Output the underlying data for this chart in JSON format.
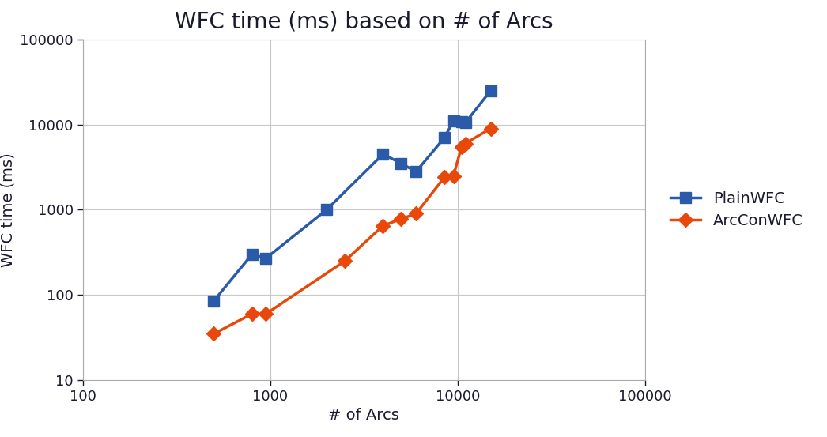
{
  "title": "WFC time (ms) based on # of Arcs",
  "xlabel": "# of Arcs",
  "ylabel": "WFC time (ms)",
  "plain_wfc": {
    "label": "PlainWFC",
    "color": "#2B5BA8",
    "marker": "s",
    "x": [
      500,
      800,
      950,
      2000,
      4000,
      5000,
      6000,
      8500,
      9500,
      10500,
      11000,
      15000
    ],
    "y": [
      85,
      300,
      270,
      1000,
      4500,
      3500,
      2800,
      7000,
      11000,
      10800,
      10500,
      25000
    ]
  },
  "arc_con_wfc": {
    "label": "ArcConWFC",
    "color": "#E8480A",
    "marker": "D",
    "x": [
      500,
      800,
      950,
      2500,
      4000,
      5000,
      6000,
      8500,
      9500,
      10500,
      11000,
      15000
    ],
    "y": [
      35,
      60,
      60,
      250,
      650,
      780,
      900,
      2400,
      2500,
      5500,
      6000,
      9000
    ]
  },
  "xlim": [
    100,
    100000
  ],
  "ylim": [
    10,
    100000
  ],
  "background_color": "#ffffff",
  "grid_color": "#c8c8c8",
  "title_fontsize": 20,
  "label_fontsize": 14,
  "tick_fontsize": 13,
  "legend_fontsize": 14,
  "text_color": "#1a1a2e",
  "xticks": [
    100,
    1000,
    10000,
    100000
  ],
  "xtick_labels": [
    "100",
    "1000",
    "10000",
    "100000"
  ],
  "yticks": [
    10,
    100,
    1000,
    10000,
    100000
  ],
  "ytick_labels": [
    "10",
    "100",
    "1000",
    "10000",
    "100000"
  ]
}
